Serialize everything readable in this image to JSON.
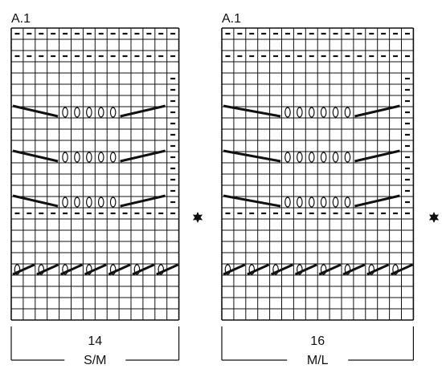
{
  "charts": [
    {
      "id": "A.1-SM",
      "title": "A.1",
      "stitch_count": "14",
      "size_label": "S/M",
      "columns": 14,
      "rows": 26,
      "row_pattern": [
        {
          "row": 1,
          "type": "purl_all"
        },
        {
          "row": 3,
          "type": "purl_all"
        },
        {
          "row": 5,
          "type": "purl_last"
        },
        {
          "row": 6,
          "type": "purl_last"
        },
        {
          "row": 7,
          "type": "purl_last"
        },
        {
          "row": 8,
          "type": "decrease_yarnover",
          "yarnovers": 5
        },
        {
          "row": 9,
          "type": "purl_last"
        },
        {
          "row": 10,
          "type": "purl_last"
        },
        {
          "row": 11,
          "type": "purl_last"
        },
        {
          "row": 12,
          "type": "decrease_yarnover",
          "yarnovers": 5
        },
        {
          "row": 13,
          "type": "purl_last"
        },
        {
          "row": 14,
          "type": "purl_last"
        },
        {
          "row": 15,
          "type": "purl_last"
        },
        {
          "row": 16,
          "type": "decrease_yarnover",
          "yarnovers": 5
        },
        {
          "row": 17,
          "type": "purl_all"
        },
        {
          "row": 22,
          "type": "crossed_pairs",
          "pairs": 7
        }
      ],
      "marker_row": 17,
      "marker_symbol": "star"
    },
    {
      "id": "A.1-ML",
      "title": "A.1",
      "stitch_count": "16",
      "size_label": "M/L",
      "columns": 16,
      "rows": 26,
      "row_pattern": [
        {
          "row": 1,
          "type": "purl_all"
        },
        {
          "row": 3,
          "type": "purl_all"
        },
        {
          "row": 5,
          "type": "purl_last"
        },
        {
          "row": 6,
          "type": "purl_last"
        },
        {
          "row": 7,
          "type": "purl_last"
        },
        {
          "row": 8,
          "type": "decrease_yarnover",
          "yarnovers": 6
        },
        {
          "row": 9,
          "type": "purl_last"
        },
        {
          "row": 10,
          "type": "purl_last"
        },
        {
          "row": 11,
          "type": "purl_last"
        },
        {
          "row": 12,
          "type": "decrease_yarnover",
          "yarnovers": 6
        },
        {
          "row": 13,
          "type": "purl_last"
        },
        {
          "row": 14,
          "type": "purl_last"
        },
        {
          "row": 15,
          "type": "purl_last"
        },
        {
          "row": 16,
          "type": "decrease_yarnover",
          "yarnovers": 6
        },
        {
          "row": 17,
          "type": "purl_all"
        },
        {
          "row": 22,
          "type": "crossed_pairs",
          "pairs": 8
        }
      ],
      "marker_row": 17,
      "marker_symbol": "star"
    }
  ],
  "colors": {
    "ink": "#111111",
    "background": "#ffffff"
  }
}
